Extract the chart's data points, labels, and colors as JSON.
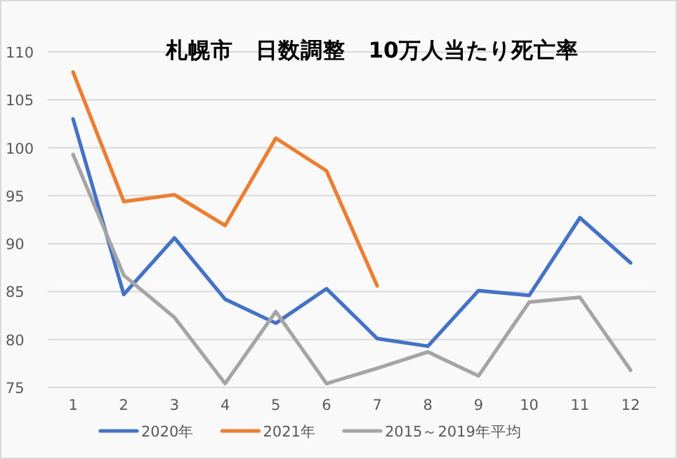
{
  "chart_data": {
    "type": "line",
    "title": "札幌市　日数調整　10万人当たり死亡率",
    "categories": [
      "1",
      "2",
      "3",
      "4",
      "5",
      "6",
      "7",
      "8",
      "9",
      "10",
      "11",
      "12"
    ],
    "series": [
      {
        "name": "2020年",
        "color": "#4472c4",
        "values": [
          103.0,
          84.7,
          90.6,
          84.2,
          81.7,
          85.3,
          80.1,
          79.3,
          85.1,
          84.6,
          92.7,
          88.0
        ]
      },
      {
        "name": "2021年",
        "color": "#ed7d31",
        "values": [
          107.9,
          94.4,
          95.1,
          91.9,
          101.0,
          97.6,
          85.6,
          null,
          null,
          null,
          null,
          null
        ]
      },
      {
        "name": "2015～2019年平均",
        "color": "#a5a5a5",
        "values": [
          99.3,
          86.7,
          82.3,
          75.4,
          82.9,
          75.4,
          77.0,
          78.7,
          76.2,
          83.9,
          84.4,
          76.8
        ]
      }
    ],
    "ylim": [
      75,
      110
    ],
    "yticks": [
      75,
      80,
      85,
      90,
      95,
      100,
      105,
      110
    ],
    "grid": "y",
    "legend": "bottom",
    "marker": "none",
    "line_style": "solid"
  }
}
